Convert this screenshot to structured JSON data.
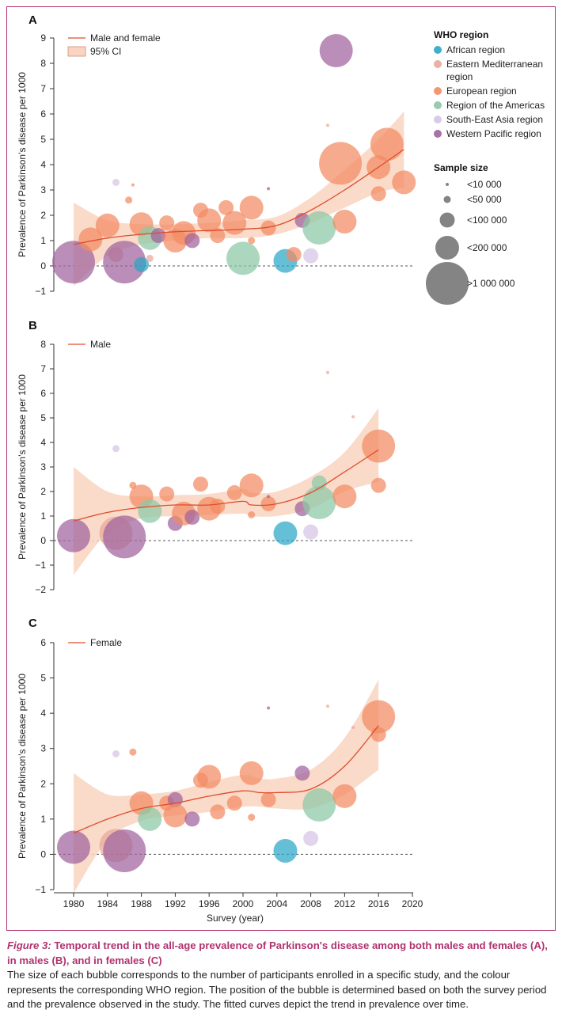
{
  "colors": {
    "african": "#2aa6c6",
    "eastern_med": "#e8a79a",
    "european": "#f28b62",
    "americas": "#8cc7a6",
    "se_asia": "#d4c5e6",
    "western_pacific": "#a0629c",
    "fit": "#e04c2c",
    "ci": "#f9d4c0",
    "frame": "#b0326f"
  },
  "chart_data": [
    {
      "type": "scatter",
      "panel": "A",
      "ylabel": "Prevalence of Parkinson's disease per 1000",
      "ylim": [
        -1,
        9
      ],
      "yticks": [
        "-1",
        "0",
        "1",
        "2",
        "3",
        "4",
        "5",
        "6",
        "7",
        "8",
        "9"
      ],
      "legend": {
        "fit": "Male and female",
        "ci": "95% CI"
      },
      "fit_x": [
        1980,
        1984,
        1988,
        1992,
        1996,
        2000,
        2004,
        2008,
        2012,
        2016,
        2019
      ],
      "fit_y": [
        0.85,
        1.1,
        1.25,
        1.35,
        1.4,
        1.45,
        1.6,
        2.2,
        3.0,
        3.9,
        4.6
      ],
      "ci_lower": [
        -0.8,
        0.4,
        0.85,
        1.0,
        1.1,
        1.1,
        1.25,
        1.7,
        2.3,
        2.9,
        3.1
      ],
      "ci_upper": [
        2.5,
        1.8,
        1.65,
        1.65,
        1.7,
        1.8,
        1.95,
        2.7,
        3.8,
        5.0,
        6.1
      ],
      "points": [
        {
          "x": 1980,
          "y": 0.15,
          "r": "xl",
          "region": "western_pacific"
        },
        {
          "x": 1982,
          "y": 1.05,
          "r": "m",
          "region": "european"
        },
        {
          "x": 1984,
          "y": 1.6,
          "r": "m",
          "region": "european"
        },
        {
          "x": 1985,
          "y": 3.3,
          "r": "xs",
          "region": "se_asia"
        },
        {
          "x": 1985,
          "y": 0.45,
          "r": "s",
          "region": "eastern_med"
        },
        {
          "x": 1986,
          "y": 0.15,
          "r": "xl",
          "region": "western_pacific"
        },
        {
          "x": 1986.5,
          "y": 2.6,
          "r": "xs",
          "region": "european"
        },
        {
          "x": 1987,
          "y": 3.2,
          "r": "xxs",
          "region": "european"
        },
        {
          "x": 1988,
          "y": 1.65,
          "r": "m",
          "region": "european"
        },
        {
          "x": 1988,
          "y": 0.05,
          "r": "s",
          "region": "african"
        },
        {
          "x": 1989,
          "y": 1.1,
          "r": "m",
          "region": "americas"
        },
        {
          "x": 1989,
          "y": 0.3,
          "r": "xs",
          "region": "eastern_med"
        },
        {
          "x": 1990,
          "y": 1.2,
          "r": "s",
          "region": "western_pacific"
        },
        {
          "x": 1991,
          "y": 1.7,
          "r": "s",
          "region": "european"
        },
        {
          "x": 1992,
          "y": 1.0,
          "r": "m",
          "region": "european"
        },
        {
          "x": 1993,
          "y": 1.3,
          "r": "m",
          "region": "european"
        },
        {
          "x": 1994,
          "y": 1.0,
          "r": "s",
          "region": "western_pacific"
        },
        {
          "x": 1995,
          "y": 2.2,
          "r": "s",
          "region": "european"
        },
        {
          "x": 1996,
          "y": 1.8,
          "r": "m",
          "region": "european"
        },
        {
          "x": 1997,
          "y": 1.2,
          "r": "s",
          "region": "european"
        },
        {
          "x": 1998,
          "y": 2.3,
          "r": "s",
          "region": "european"
        },
        {
          "x": 1999,
          "y": 1.7,
          "r": "m",
          "region": "european"
        },
        {
          "x": 2000,
          "y": 0.3,
          "r": "l",
          "region": "americas"
        },
        {
          "x": 2001,
          "y": 2.3,
          "r": "m",
          "region": "european"
        },
        {
          "x": 2001,
          "y": 1.0,
          "r": "xs",
          "region": "european"
        },
        {
          "x": 2003,
          "y": 1.5,
          "r": "s",
          "region": "european"
        },
        {
          "x": 2003,
          "y": 3.05,
          "r": "xxs",
          "region": "western_pacific"
        },
        {
          "x": 2005,
          "y": 0.2,
          "r": "m",
          "region": "african"
        },
        {
          "x": 2006,
          "y": 0.45,
          "r": "s",
          "region": "european"
        },
        {
          "x": 2007,
          "y": 1.8,
          "r": "s",
          "region": "western_pacific"
        },
        {
          "x": 2008,
          "y": 0.4,
          "r": "s",
          "region": "se_asia"
        },
        {
          "x": 2009,
          "y": 1.5,
          "r": "l",
          "region": "americas"
        },
        {
          "x": 2010,
          "y": 5.55,
          "r": "xxs",
          "region": "eastern_med"
        },
        {
          "x": 2011,
          "y": 8.5,
          "r": "l",
          "region": "western_pacific"
        },
        {
          "x": 2011.5,
          "y": 4.05,
          "r": "xl",
          "region": "european"
        },
        {
          "x": 2012,
          "y": 1.75,
          "r": "m",
          "region": "european"
        },
        {
          "x": 2013,
          "y": 4.3,
          "r": "xxs",
          "region": "eastern_med"
        },
        {
          "x": 2016,
          "y": 2.85,
          "r": "s",
          "region": "european"
        },
        {
          "x": 2016,
          "y": 3.9,
          "r": "m",
          "region": "european"
        },
        {
          "x": 2017,
          "y": 4.8,
          "r": "l",
          "region": "european"
        },
        {
          "x": 2019,
          "y": 3.3,
          "r": "m",
          "region": "european"
        }
      ]
    },
    {
      "type": "scatter",
      "panel": "B",
      "ylabel": "Prevalence of Parkinson's disease per 1000",
      "ylim": [
        -2,
        8
      ],
      "yticks": [
        "-2",
        "-1",
        "0",
        "1",
        "2",
        "3",
        "4",
        "5",
        "6",
        "7",
        "8"
      ],
      "legend": {
        "fit": "Male"
      },
      "fit_x": [
        1980,
        1984,
        1988,
        1992,
        1996,
        2000,
        2001,
        2004,
        2008,
        2012,
        2016
      ],
      "fit_y": [
        0.8,
        1.15,
        1.35,
        1.45,
        1.45,
        1.6,
        1.45,
        1.5,
        1.95,
        2.8,
        3.7
      ],
      "ci_lower": [
        -1.4,
        0.3,
        0.9,
        1.0,
        1.05,
        1.1,
        1.0,
        1.0,
        1.3,
        2.0,
        2.4
      ],
      "ci_upper": [
        3.0,
        2.0,
        1.8,
        1.85,
        1.9,
        2.1,
        1.95,
        2.0,
        2.6,
        3.6,
        5.4
      ],
      "points": [
        {
          "x": 1980,
          "y": 0.2,
          "r": "l",
          "region": "western_pacific"
        },
        {
          "x": 1985,
          "y": 0.3,
          "r": "l",
          "region": "eastern_med"
        },
        {
          "x": 1985,
          "y": 3.75,
          "r": "xs",
          "region": "se_asia"
        },
        {
          "x": 1986,
          "y": 0.15,
          "r": "xl",
          "region": "western_pacific"
        },
        {
          "x": 1987,
          "y": 2.25,
          "r": "xs",
          "region": "european"
        },
        {
          "x": 1988,
          "y": 1.8,
          "r": "m",
          "region": "european"
        },
        {
          "x": 1989,
          "y": 1.2,
          "r": "m",
          "region": "americas"
        },
        {
          "x": 1991,
          "y": 1.9,
          "r": "s",
          "region": "european"
        },
        {
          "x": 1992,
          "y": 0.7,
          "r": "s",
          "region": "western_pacific"
        },
        {
          "x": 1993,
          "y": 1.1,
          "r": "m",
          "region": "european"
        },
        {
          "x": 1994,
          "y": 0.95,
          "r": "s",
          "region": "western_pacific"
        },
        {
          "x": 1995,
          "y": 2.3,
          "r": "s",
          "region": "european"
        },
        {
          "x": 1996,
          "y": 1.3,
          "r": "m",
          "region": "european"
        },
        {
          "x": 1997,
          "y": 1.4,
          "r": "s",
          "region": "european"
        },
        {
          "x": 1999,
          "y": 1.95,
          "r": "s",
          "region": "european"
        },
        {
          "x": 2001,
          "y": 2.25,
          "r": "m",
          "region": "european"
        },
        {
          "x": 2001,
          "y": 1.05,
          "r": "xs",
          "region": "european"
        },
        {
          "x": 2003,
          "y": 1.5,
          "r": "s",
          "region": "european"
        },
        {
          "x": 2003,
          "y": 1.8,
          "r": "xxs",
          "region": "western_pacific"
        },
        {
          "x": 2005,
          "y": 0.3,
          "r": "m",
          "region": "african"
        },
        {
          "x": 2007,
          "y": 1.3,
          "r": "s",
          "region": "western_pacific"
        },
        {
          "x": 2008,
          "y": 0.35,
          "r": "s",
          "region": "se_asia"
        },
        {
          "x": 2009,
          "y": 1.55,
          "r": "l",
          "region": "americas"
        },
        {
          "x": 2009,
          "y": 2.35,
          "r": "s",
          "region": "americas"
        },
        {
          "x": 2010,
          "y": 6.85,
          "r": "xxs",
          "region": "eastern_med"
        },
        {
          "x": 2012,
          "y": 1.8,
          "r": "m",
          "region": "european"
        },
        {
          "x": 2013,
          "y": 5.05,
          "r": "xxs",
          "region": "eastern_med"
        },
        {
          "x": 2016,
          "y": 2.25,
          "r": "s",
          "region": "european"
        },
        {
          "x": 2016,
          "y": 3.85,
          "r": "l",
          "region": "european"
        }
      ]
    },
    {
      "type": "scatter",
      "panel": "C",
      "ylabel": "Prevalence of Parkinson's disease per 1000",
      "xlabel": "Survey (year)",
      "ylim": [
        -1,
        6
      ],
      "yticks": [
        "-1",
        "0",
        "1",
        "2",
        "3",
        "4",
        "5",
        "6"
      ],
      "xticks": [
        "1980",
        "1984",
        "1988",
        "1992",
        "1996",
        "2000",
        "2004",
        "2008",
        "2012",
        "2016",
        "2020"
      ],
      "legend": {
        "fit": "Female"
      },
      "fit_x": [
        1980,
        1984,
        1988,
        1992,
        1996,
        2000,
        2002,
        2004,
        2008,
        2012,
        2016
      ],
      "fit_y": [
        0.6,
        1.0,
        1.3,
        1.45,
        1.65,
        1.8,
        1.75,
        1.75,
        1.85,
        2.5,
        3.65
      ],
      "ci_lower": [
        -1.1,
        0.4,
        0.95,
        1.1,
        1.2,
        1.35,
        1.35,
        1.3,
        1.3,
        1.7,
        2.4
      ],
      "ci_upper": [
        2.3,
        1.7,
        1.7,
        1.8,
        2.05,
        2.25,
        2.15,
        2.15,
        2.4,
        3.3,
        4.95
      ],
      "points": [
        {
          "x": 1980,
          "y": 0.2,
          "r": "l",
          "region": "western_pacific"
        },
        {
          "x": 1985,
          "y": 0.25,
          "r": "l",
          "region": "eastern_med"
        },
        {
          "x": 1985,
          "y": 2.85,
          "r": "xs",
          "region": "se_asia"
        },
        {
          "x": 1986,
          "y": 0.1,
          "r": "xl",
          "region": "western_pacific"
        },
        {
          "x": 1987,
          "y": 2.9,
          "r": "xs",
          "region": "european"
        },
        {
          "x": 1988,
          "y": 1.45,
          "r": "m",
          "region": "european"
        },
        {
          "x": 1989,
          "y": 1.0,
          "r": "m",
          "region": "americas"
        },
        {
          "x": 1991,
          "y": 1.45,
          "r": "s",
          "region": "european"
        },
        {
          "x": 1992,
          "y": 1.55,
          "r": "s",
          "region": "western_pacific"
        },
        {
          "x": 1992,
          "y": 1.1,
          "r": "m",
          "region": "european"
        },
        {
          "x": 1994,
          "y": 1.0,
          "r": "s",
          "region": "western_pacific"
        },
        {
          "x": 1995,
          "y": 2.1,
          "r": "s",
          "region": "european"
        },
        {
          "x": 1996,
          "y": 2.2,
          "r": "m",
          "region": "european"
        },
        {
          "x": 1997,
          "y": 1.2,
          "r": "s",
          "region": "european"
        },
        {
          "x": 1999,
          "y": 1.45,
          "r": "s",
          "region": "european"
        },
        {
          "x": 2001,
          "y": 2.3,
          "r": "m",
          "region": "european"
        },
        {
          "x": 2001,
          "y": 1.05,
          "r": "xs",
          "region": "european"
        },
        {
          "x": 2003,
          "y": 1.55,
          "r": "s",
          "region": "european"
        },
        {
          "x": 2003,
          "y": 4.15,
          "r": "xxs",
          "region": "western_pacific"
        },
        {
          "x": 2005,
          "y": 0.1,
          "r": "m",
          "region": "african"
        },
        {
          "x": 2007,
          "y": 2.3,
          "r": "s",
          "region": "western_pacific"
        },
        {
          "x": 2008,
          "y": 0.45,
          "r": "s",
          "region": "se_asia"
        },
        {
          "x": 2009,
          "y": 1.4,
          "r": "l",
          "region": "americas"
        },
        {
          "x": 2010,
          "y": 4.2,
          "r": "xxs",
          "region": "eastern_med"
        },
        {
          "x": 2012,
          "y": 1.65,
          "r": "m",
          "region": "european"
        },
        {
          "x": 2013,
          "y": 3.6,
          "r": "xxs",
          "region": "eastern_med"
        },
        {
          "x": 2016,
          "y": 3.4,
          "r": "s",
          "region": "european"
        },
        {
          "x": 2016,
          "y": 3.9,
          "r": "l",
          "region": "european"
        }
      ]
    }
  ],
  "region_legend": {
    "title": "WHO region",
    "items": [
      {
        "key": "african",
        "label": "African region"
      },
      {
        "key": "eastern_med",
        "label": "Eastern Mediterranean region"
      },
      {
        "key": "european",
        "label": "European region"
      },
      {
        "key": "americas",
        "label": "Region of the Americas"
      },
      {
        "key": "se_asia",
        "label": "South-East Asia region"
      },
      {
        "key": "western_pacific",
        "label": "Western Pacific region"
      }
    ]
  },
  "size_legend": {
    "title": "Sample size",
    "items": [
      {
        "key": "xxs",
        "label": "<10 000"
      },
      {
        "key": "xs",
        "label": "<50 000"
      },
      {
        "key": "s",
        "label": "<100 000"
      },
      {
        "key": "m",
        "label": "<200 000"
      },
      {
        "key": "xl",
        "label": ">1 000 000"
      }
    ]
  },
  "caption": {
    "label": "Figure 3:",
    "title": "Temporal trend in the all-age prevalence of Parkinson's disease among both males and females (A), in males (B), and in females (C)",
    "body": "The size of each bubble corresponds to the number of participants enrolled in a specific study, and the colour represents the corresponding WHO region. The position of the bubble is determined based on both the survey period and the prevalence observed in the study. The fitted curves depict the trend in prevalence over time."
  }
}
